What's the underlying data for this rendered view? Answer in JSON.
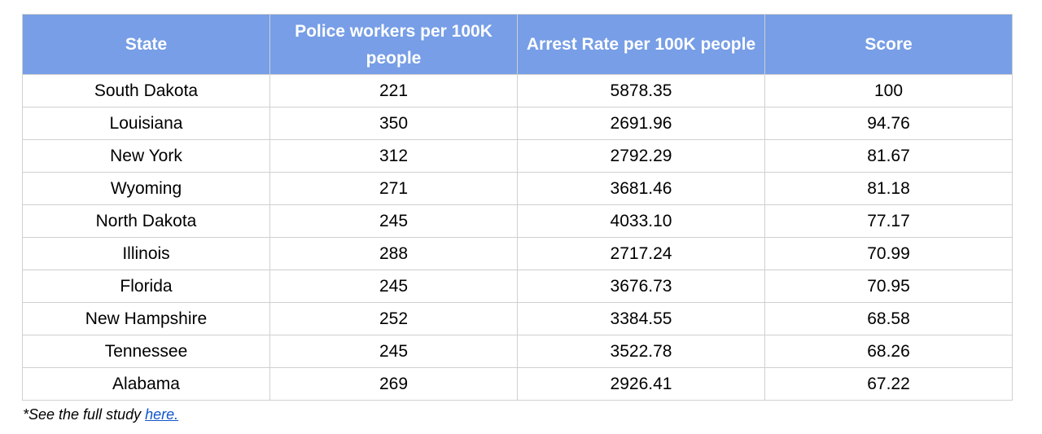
{
  "table": {
    "headers": [
      "State",
      "Police workers per 100K people",
      "Arrest Rate per 100K people",
      "Score"
    ],
    "rows": [
      [
        "South Dakota",
        "221",
        "5878.35",
        "100"
      ],
      [
        "Louisiana",
        "350",
        "2691.96",
        "94.76"
      ],
      [
        "New York",
        "312",
        "2792.29",
        "81.67"
      ],
      [
        "Wyoming",
        "271",
        "3681.46",
        "81.18"
      ],
      [
        "North Dakota",
        "245",
        "4033.10",
        "77.17"
      ],
      [
        "Illinois",
        "288",
        "2717.24",
        "70.99"
      ],
      [
        "Florida",
        "245",
        "3676.73",
        "70.95"
      ],
      [
        "New Hampshire",
        "252",
        "3384.55",
        "68.58"
      ],
      [
        "Tennessee",
        "245",
        "3522.78",
        "68.26"
      ],
      [
        "Alabama",
        "269",
        "2926.41",
        "67.22"
      ]
    ]
  },
  "footnote": {
    "text": "*See the full study ",
    "link_label": "here."
  },
  "colors": {
    "header_background": "#779ee6",
    "header_text": "#ffffff",
    "grid_border": "#d0d0d0",
    "link": "#1155cc"
  }
}
